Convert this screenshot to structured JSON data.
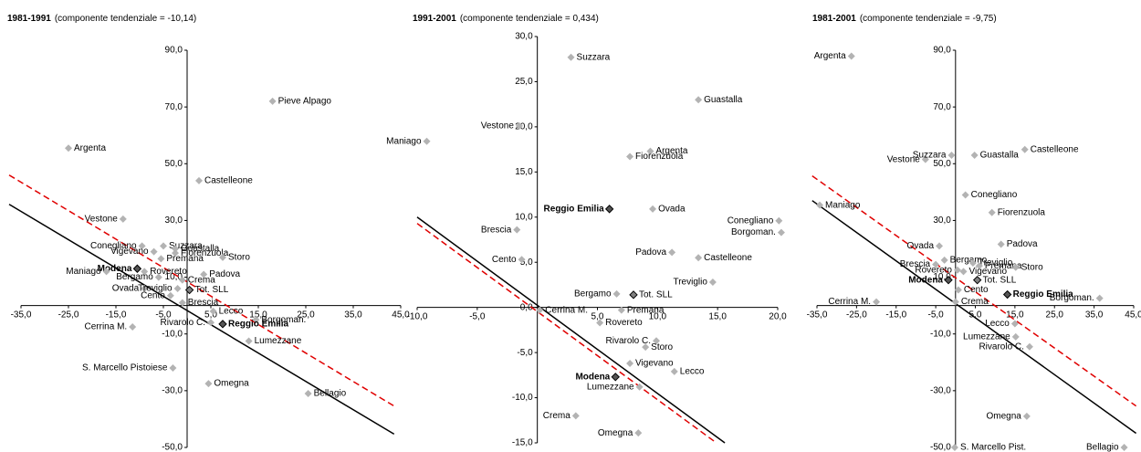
{
  "chart_data": [
    {
      "type": "scatter",
      "title": "1981-1991",
      "subtitle": "(componente tendenziale = -10,14)",
      "xlim": [
        -35,
        45
      ],
      "ylim": [
        -50,
        90
      ],
      "xticks": [
        {
          "value": -35,
          "label": "-35,0"
        },
        {
          "value": -25,
          "label": "-25,0"
        },
        {
          "value": -15,
          "label": "-15,0"
        },
        {
          "value": -5,
          "label": "-5,0"
        },
        {
          "value": 5,
          "label": "5,0"
        },
        {
          "value": 15,
          "label": "15,0"
        },
        {
          "value": 25,
          "label": "25,0"
        },
        {
          "value": 35,
          "label": "35,0"
        },
        {
          "value": 45,
          "label": "45,0"
        }
      ],
      "yticks": [
        {
          "value": 90,
          "label": "90,0"
        },
        {
          "value": 70,
          "label": "70,0"
        },
        {
          "value": 50,
          "label": "50,0"
        },
        {
          "value": 30,
          "label": "30,0"
        },
        {
          "value": 10,
          "label": "10,0"
        },
        {
          "value": -10,
          "label": "-10,0"
        },
        {
          "value": -30,
          "label": "-30,0"
        },
        {
          "value": -50,
          "label": "-50,0"
        }
      ],
      "points": [
        {
          "label": "Pieve Alpago",
          "x": 18,
          "y": 72,
          "color": "#b3b3b3"
        },
        {
          "label": "Argenta",
          "x": -25,
          "y": 55.5,
          "color": "#b3b3b3"
        },
        {
          "label": "Castelleone",
          "x": 2.5,
          "y": 44,
          "color": "#b3b3b3"
        },
        {
          "label": "Vestone",
          "x": -13.5,
          "y": 30.5,
          "color": "#b3b3b3"
        },
        {
          "label": "Conegliano",
          "x": -9.5,
          "y": 21,
          "color": "#b3b3b3"
        },
        {
          "label": "Suzzara",
          "x": -5,
          "y": 21,
          "color": "#b3b3b3"
        },
        {
          "label": "Guastalla",
          "x": -2.5,
          "y": 20,
          "color": "#b3b3b3"
        },
        {
          "label": "Vigevano",
          "x": -7,
          "y": 19,
          "color": "#b3b3b3"
        },
        {
          "label": "Fiorenzuola",
          "x": -2.5,
          "y": 18.5,
          "color": "#b3b3b3"
        },
        {
          "label": "Premana",
          "x": -5.5,
          "y": 16.5,
          "color": "#b3b3b3"
        },
        {
          "label": "Storo",
          "x": 7.5,
          "y": 17,
          "color": "#b3b3b3"
        },
        {
          "label": "Modena",
          "x": -10.5,
          "y": 13,
          "color": "#222222",
          "bold": true
        },
        {
          "label": "Rovereto",
          "x": -9,
          "y": 12,
          "color": "#b3b3b3"
        },
        {
          "label": "Maniago",
          "x": -17,
          "y": 12,
          "color": "#b3b3b3"
        },
        {
          "label": "Padova",
          "x": 3.5,
          "y": 11,
          "color": "#b3b3b3"
        },
        {
          "label": "Bergamo",
          "x": -6,
          "y": 10,
          "color": "#b3b3b3"
        },
        {
          "label": "Crema",
          "x": -1,
          "y": 9,
          "color": "#b3b3b3"
        },
        {
          "label": "Ovada",
          "x": -9,
          "y": 6,
          "color": "#b3b3b3"
        },
        {
          "label": "Treviglio",
          "x": -2,
          "y": 6,
          "color": "#b3b3b3"
        },
        {
          "label": "Tot. SLL",
          "x": 0.5,
          "y": 5.5,
          "color": "#808080"
        },
        {
          "label": "Cento",
          "x": -3.5,
          "y": 3.5,
          "color": "#b3b3b3"
        },
        {
          "label": "Brescia",
          "x": -1,
          "y": 1,
          "color": "#b3b3b3"
        },
        {
          "label": "Lecco",
          "x": 5.5,
          "y": -2,
          "color": "#b3b3b3"
        },
        {
          "label": "Borgoman.",
          "x": 14.5,
          "y": -5,
          "color": "#b3b3b3"
        },
        {
          "label": "Rivarolo C.",
          "x": 5,
          "y": -6,
          "color": "#b3b3b3"
        },
        {
          "label": "Reggio Emilia",
          "x": 7.5,
          "y": -6.5,
          "color": "#222222",
          "bold": true
        },
        {
          "label": "Cerrina M.",
          "x": -11.5,
          "y": -7.5,
          "color": "#b3b3b3"
        },
        {
          "label": "Lumezzane",
          "x": 13,
          "y": -12.5,
          "color": "#b3b3b3"
        },
        {
          "label": "S. Marcello Pistoiese",
          "x": -3,
          "y": -22,
          "color": "#b3b3b3"
        },
        {
          "label": "Omegna",
          "x": 4.5,
          "y": -27.5,
          "color": "#b3b3b3"
        },
        {
          "label": "Bellagio",
          "x": 25.5,
          "y": -31,
          "color": "#b3b3b3"
        }
      ],
      "lines": [
        {
          "color": "#e00000",
          "style": "dashed",
          "x": [
            -37.5,
            43.6
          ],
          "y": [
            46,
            -35.4
          ]
        },
        {
          "color": "#000000",
          "style": "solid",
          "x": [
            -37.5,
            43.6
          ],
          "y": [
            35.7,
            -45.3
          ]
        }
      ]
    },
    {
      "type": "scatter",
      "title": "1991-2001",
      "subtitle": "(componente tendenziale = 0,434)",
      "xlim": [
        -10,
        20
      ],
      "ylim": [
        -15,
        30
      ],
      "xticks": [
        {
          "value": -10,
          "label": "-10,0"
        },
        {
          "value": -5,
          "label": "-5,0"
        },
        {
          "value": 5,
          "label": "5,0"
        },
        {
          "value": 10,
          "label": "10,0"
        },
        {
          "value": 15,
          "label": "15,0"
        },
        {
          "value": 20,
          "label": "20,0"
        }
      ],
      "yticks": [
        {
          "value": 30,
          "label": "30,0"
        },
        {
          "value": 25,
          "label": "25,0"
        },
        {
          "value": 20,
          "label": "20,0"
        },
        {
          "value": 15,
          "label": "15,0"
        },
        {
          "value": 10,
          "label": "10,0"
        },
        {
          "value": 5,
          "label": "5,0"
        },
        {
          "value": 0,
          "label": "0,0"
        },
        {
          "value": -5,
          "label": "-5,0"
        },
        {
          "value": -10,
          "label": "-10,0"
        },
        {
          "value": -15,
          "label": "-15,0"
        }
      ],
      "points": [
        {
          "label": "Suzzara",
          "x": 2.8,
          "y": 27.7,
          "color": "#b3b3b3"
        },
        {
          "label": "Guastalla",
          "x": 13.4,
          "y": 23,
          "color": "#b3b3b3"
        },
        {
          "label": "Vestone",
          "x": -1.5,
          "y": 20.1,
          "color": "#b3b3b3"
        },
        {
          "label": "Maniago",
          "x": -9.2,
          "y": 18.4,
          "color": "#b3b3b3"
        },
        {
          "label": "Argenta",
          "x": 9.4,
          "y": 17.3,
          "color": "#b3b3b3"
        },
        {
          "label": "Fiorenzuola",
          "x": 7.7,
          "y": 16.7,
          "color": "#b3b3b3"
        },
        {
          "label": "Reggio Emilia",
          "x": 6,
          "y": 10.9,
          "color": "#222222",
          "bold": true
        },
        {
          "label": "Ovada",
          "x": 9.6,
          "y": 10.9,
          "color": "#b3b3b3"
        },
        {
          "label": "Conegliano",
          "x": 20.1,
          "y": 9.6,
          "color": "#b3b3b3"
        },
        {
          "label": "Brescia",
          "x": -1.7,
          "y": 8.6,
          "color": "#b3b3b3"
        },
        {
          "label": "Borgoman.",
          "x": 20.3,
          "y": 8.3,
          "color": "#b3b3b3"
        },
        {
          "label": "Cento",
          "x": -1.3,
          "y": 5.3,
          "color": "#b3b3b3"
        },
        {
          "label": "Padova",
          "x": 11.2,
          "y": 6.1,
          "color": "#b3b3b3"
        },
        {
          "label": "Castelleone",
          "x": 13.4,
          "y": 5.5,
          "color": "#b3b3b3"
        },
        {
          "label": "Treviglio",
          "x": 14.6,
          "y": 2.8,
          "color": "#b3b3b3"
        },
        {
          "label": "Bergamo",
          "x": 6.6,
          "y": 1.5,
          "color": "#b3b3b3"
        },
        {
          "label": "Tot. SLL",
          "x": 8,
          "y": 1.4,
          "color": "#808080"
        },
        {
          "label": "Cerrina M.",
          "x": 0.2,
          "y": -0.3,
          "color": "#b3b3b3"
        },
        {
          "label": "Premana",
          "x": 7,
          "y": -0.3,
          "color": "#b3b3b3"
        },
        {
          "label": "Rovereto",
          "x": 5.2,
          "y": -1.7,
          "color": "#b3b3b3"
        },
        {
          "label": "Rivarolo C.",
          "x": 9.9,
          "y": -3.7,
          "color": "#b3b3b3"
        },
        {
          "label": "Storo",
          "x": 9,
          "y": -4.4,
          "color": "#b3b3b3"
        },
        {
          "label": "Vigevano",
          "x": 7.7,
          "y": -6.2,
          "color": "#b3b3b3"
        },
        {
          "label": "Lecco",
          "x": 11.4,
          "y": -7.1,
          "color": "#b3b3b3"
        },
        {
          "label": "Modena",
          "x": 6.5,
          "y": -7.7,
          "color": "#222222",
          "bold": true
        },
        {
          "label": "Lumezzane",
          "x": 8.5,
          "y": -8.8,
          "color": "#b3b3b3"
        },
        {
          "label": "Crema",
          "x": 3.2,
          "y": -12,
          "color": "#b3b3b3"
        },
        {
          "label": "Omegna",
          "x": 8.4,
          "y": -13.9,
          "color": "#b3b3b3"
        }
      ],
      "lines": [
        {
          "color": "#e00000",
          "style": "dashed",
          "x": [
            -10,
            14.9
          ],
          "y": [
            9.3,
            -15
          ]
        },
        {
          "color": "#000000",
          "style": "solid",
          "x": [
            -10,
            15.6
          ],
          "y": [
            10,
            -15
          ]
        }
      ]
    },
    {
      "type": "scatter",
      "title": "1981-2001",
      "subtitle": "(componente tendenziale = -9,75)",
      "xlim": [
        -35,
        45
      ],
      "ylim": [
        -50,
        90
      ],
      "xticks": [
        {
          "value": -35,
          "label": "-35,0"
        },
        {
          "value": -25,
          "label": "-25,0"
        },
        {
          "value": -15,
          "label": "-15,0"
        },
        {
          "value": -5,
          "label": "-5,0"
        },
        {
          "value": 5,
          "label": "5,0"
        },
        {
          "value": 15,
          "label": "15,0"
        },
        {
          "value": 25,
          "label": "25,0"
        },
        {
          "value": 35,
          "label": "35,0"
        },
        {
          "value": 45,
          "label": "45,0"
        }
      ],
      "yticks": [
        {
          "value": 90,
          "label": "90,0"
        },
        {
          "value": 70,
          "label": "70,0"
        },
        {
          "value": 50,
          "label": "50,0"
        },
        {
          "value": 30,
          "label": "30,0"
        },
        {
          "value": 10,
          "label": "10,0"
        },
        {
          "value": -10,
          "label": "-10,0"
        },
        {
          "value": -30,
          "label": "-30,0"
        },
        {
          "value": -50,
          "label": "-50,0"
        }
      ],
      "points": [
        {
          "label": "Argenta",
          "x": -26.3,
          "y": 87.9,
          "color": "#b3b3b3"
        },
        {
          "label": "Vestone",
          "x": -7.6,
          "y": 51.5,
          "color": "#b3b3b3"
        },
        {
          "label": "Suzzara",
          "x": -1,
          "y": 53,
          "color": "#b3b3b3"
        },
        {
          "label": "Guastalla",
          "x": 4.8,
          "y": 53,
          "color": "#b3b3b3"
        },
        {
          "label": "Castelleone",
          "x": 17.5,
          "y": 55,
          "color": "#b3b3b3"
        },
        {
          "label": "Conegliano",
          "x": 2.5,
          "y": 39,
          "color": "#b3b3b3"
        },
        {
          "label": "Fiorenzuola",
          "x": 9.2,
          "y": 32.8,
          "color": "#b3b3b3"
        },
        {
          "label": "Maniago",
          "x": -34.3,
          "y": 35.4,
          "color": "#b3b3b3"
        },
        {
          "label": "Padova",
          "x": 11.5,
          "y": 21.6,
          "color": "#b3b3b3"
        },
        {
          "label": "Ovada",
          "x": -4.1,
          "y": 21,
          "color": "#b3b3b3"
        },
        {
          "label": "Bergamo",
          "x": -2.8,
          "y": 16,
          "color": "#b3b3b3"
        },
        {
          "label": "Treviglio",
          "x": 4.4,
          "y": 15,
          "color": "#b3b3b3"
        },
        {
          "label": "Brescia",
          "x": -5,
          "y": 14.5,
          "color": "#b3b3b3"
        },
        {
          "label": "Premana",
          "x": 6,
          "y": 14,
          "color": "#b3b3b3"
        },
        {
          "label": "Storo",
          "x": 15.2,
          "y": 13.5,
          "color": "#b3b3b3"
        },
        {
          "label": "Rovereto",
          "x": 0.5,
          "y": 12.5,
          "color": "#b3b3b3"
        },
        {
          "label": "Vigevano",
          "x": 2,
          "y": 12,
          "color": "#b3b3b3"
        },
        {
          "label": "Modena",
          "x": -1.8,
          "y": 9,
          "color": "#222222",
          "bold": true
        },
        {
          "label": "Tot. SLL",
          "x": 5.5,
          "y": 9,
          "color": "#808080"
        },
        {
          "label": "Cento",
          "x": 0.7,
          "y": 5.5,
          "color": "#b3b3b3"
        },
        {
          "label": "Borgoman.",
          "x": 36.4,
          "y": 2.6,
          "color": "#b3b3b3"
        },
        {
          "label": "Reggio Emilia",
          "x": 13.1,
          "y": 3.9,
          "color": "#222222",
          "bold": true
        },
        {
          "label": "Cerrina M.",
          "x": -20,
          "y": 1.3,
          "color": "#b3b3b3"
        },
        {
          "label": "Crema",
          "x": 0,
          "y": 1.3,
          "color": "#b3b3b3"
        },
        {
          "label": "Lecco",
          "x": 15,
          "y": -6.4,
          "color": "#b3b3b3"
        },
        {
          "label": "Lumezzane",
          "x": 15.2,
          "y": -11,
          "color": "#b3b3b3"
        },
        {
          "label": "Rivarolo C.",
          "x": 18.7,
          "y": -14.5,
          "color": "#b3b3b3"
        },
        {
          "label": "Omegna",
          "x": 18,
          "y": -39,
          "color": "#b3b3b3"
        },
        {
          "label": "Bellagio",
          "x": 42.6,
          "y": -50,
          "color": "#b3b3b3"
        },
        {
          "label": "S. Marcello Pist.",
          "x": -0.2,
          "y": -50,
          "color": "#b3b3b3"
        }
      ],
      "lines": [
        {
          "color": "#e00000",
          "style": "dashed",
          "x": [
            -36.2,
            45.6
          ],
          "y": [
            45.7,
            -35.4
          ]
        },
        {
          "color": "#000000",
          "style": "solid",
          "x": [
            -36.2,
            45.6
          ],
          "y": [
            37,
            -45
          ]
        }
      ]
    }
  ]
}
